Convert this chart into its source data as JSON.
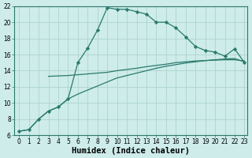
{
  "line1_x": [
    0,
    1,
    2,
    3,
    4,
    5,
    6,
    7,
    8,
    9,
    10,
    11,
    12,
    13,
    14,
    15,
    16,
    17,
    18,
    19,
    20,
    21,
    22,
    23
  ],
  "line1_y": [
    6.5,
    6.7,
    8.0,
    9.0,
    9.5,
    10.5,
    15.0,
    16.8,
    19.0,
    21.8,
    21.6,
    21.6,
    21.3,
    21.0,
    20.0,
    20.0,
    19.3,
    18.2,
    17.0,
    16.5,
    16.3,
    15.8,
    16.7,
    15.0
  ],
  "line2_x": [
    3,
    4,
    5,
    6,
    7,
    8,
    9,
    10,
    11,
    12,
    13,
    14,
    15,
    16,
    17,
    18,
    19,
    20,
    21,
    22,
    23
  ],
  "line2_y": [
    13.3,
    13.35,
    13.4,
    13.5,
    13.6,
    13.7,
    13.8,
    14.0,
    14.15,
    14.3,
    14.5,
    14.65,
    14.8,
    15.0,
    15.1,
    15.2,
    15.25,
    15.3,
    15.35,
    15.35,
    15.2
  ],
  "line3_x": [
    0,
    1,
    2,
    3,
    4,
    5,
    6,
    7,
    8,
    9,
    10,
    11,
    12,
    13,
    14,
    15,
    16,
    17,
    18,
    19,
    20,
    21,
    22,
    23
  ],
  "line3_y": [
    6.5,
    6.7,
    8.0,
    9.0,
    9.5,
    10.5,
    11.1,
    11.6,
    12.1,
    12.6,
    13.1,
    13.4,
    13.7,
    14.0,
    14.3,
    14.55,
    14.75,
    14.95,
    15.1,
    15.25,
    15.35,
    15.45,
    15.5,
    15.1
  ],
  "line_color": "#2a7a6c",
  "bg_color": "#cdecea",
  "grid_color": "#aed4d0",
  "xlabel": "Humidex (Indice chaleur)",
  "xlim_min": -0.5,
  "xlim_max": 23.3,
  "ylim_min": 6,
  "ylim_max": 22,
  "yticks": [
    6,
    8,
    10,
    12,
    14,
    16,
    18,
    20,
    22
  ],
  "xticks": [
    0,
    1,
    2,
    3,
    4,
    5,
    6,
    7,
    8,
    9,
    10,
    11,
    12,
    13,
    14,
    15,
    16,
    17,
    18,
    19,
    20,
    21,
    22,
    23
  ],
  "tick_fontsize": 5.5,
  "xlabel_fontsize": 7.5,
  "marker": "D",
  "markersize": 2.2
}
